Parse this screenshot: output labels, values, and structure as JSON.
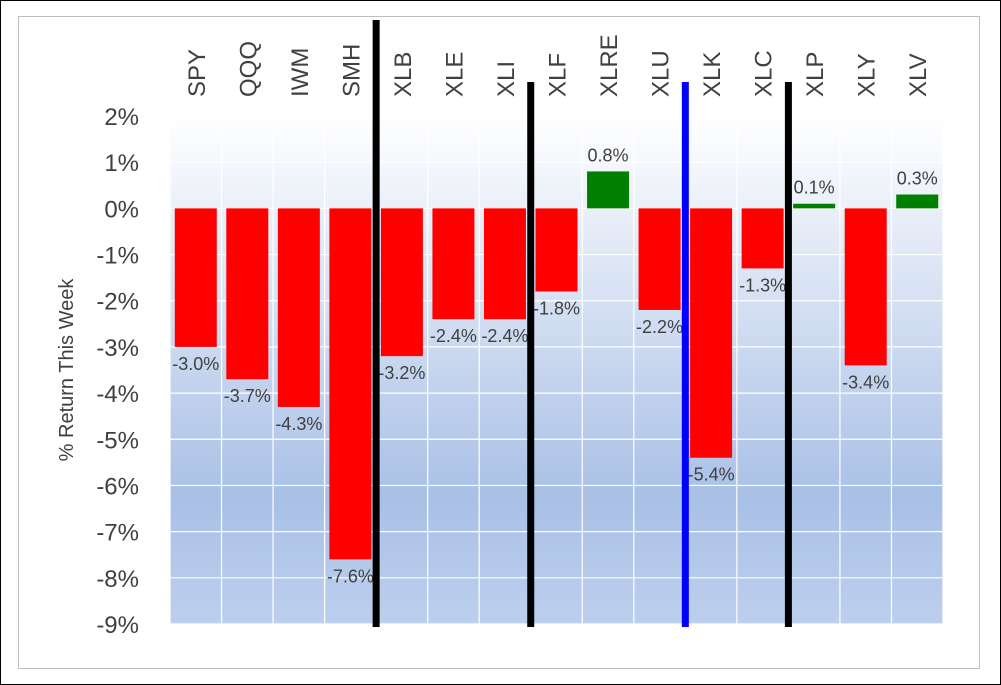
{
  "chart_data": {
    "type": "bar",
    "title": "",
    "xlabel": "",
    "ylabel": "% Return This Week",
    "categories": [
      "SPY",
      "QQQ",
      "IWM",
      "SMH",
      "XLB",
      "XLE",
      "XLI",
      "XLF",
      "XLRE",
      "XLU",
      "XLK",
      "XLC",
      "XLP",
      "XLY",
      "XLV"
    ],
    "values": [
      -3.0,
      -3.7,
      -4.3,
      -7.6,
      -3.2,
      -2.4,
      -2.4,
      -1.8,
      0.8,
      -2.2,
      -5.4,
      -1.3,
      0.1,
      -3.4,
      0.3
    ],
    "value_labels": [
      "-3.0%",
      "-3.7%",
      "-4.3%",
      "-7.6%",
      "-3.2%",
      "-2.4%",
      "-2.4%",
      "-1.8%",
      "0.8%",
      "-2.2%",
      "-5.4%",
      "-1.3%",
      "0.1%",
      "-3.4%",
      "0.3%"
    ],
    "ylim": [
      -9,
      2
    ],
    "yticks": [
      2,
      1,
      0,
      -1,
      -2,
      -3,
      -4,
      -5,
      -6,
      -7,
      -8,
      -9
    ],
    "ytick_labels": [
      "2%",
      "1%",
      "0%",
      "-1%",
      "-2%",
      "-3%",
      "-4%",
      "-5%",
      "-6%",
      "-7%",
      "-8%",
      "-9%"
    ],
    "grid": true,
    "positive_color": "#008000",
    "negative_color": "#ff0000",
    "background_gradient": [
      "#ffffff",
      "#a9c0e6"
    ],
    "group_dividers": [
      {
        "after_category": "SMH",
        "color": "#000000"
      },
      {
        "after_category": "XLI",
        "color": "#000000"
      },
      {
        "after_category": "XLU",
        "color": "#0000ff"
      },
      {
        "after_category": "XLC",
        "color": "#000000"
      }
    ]
  }
}
